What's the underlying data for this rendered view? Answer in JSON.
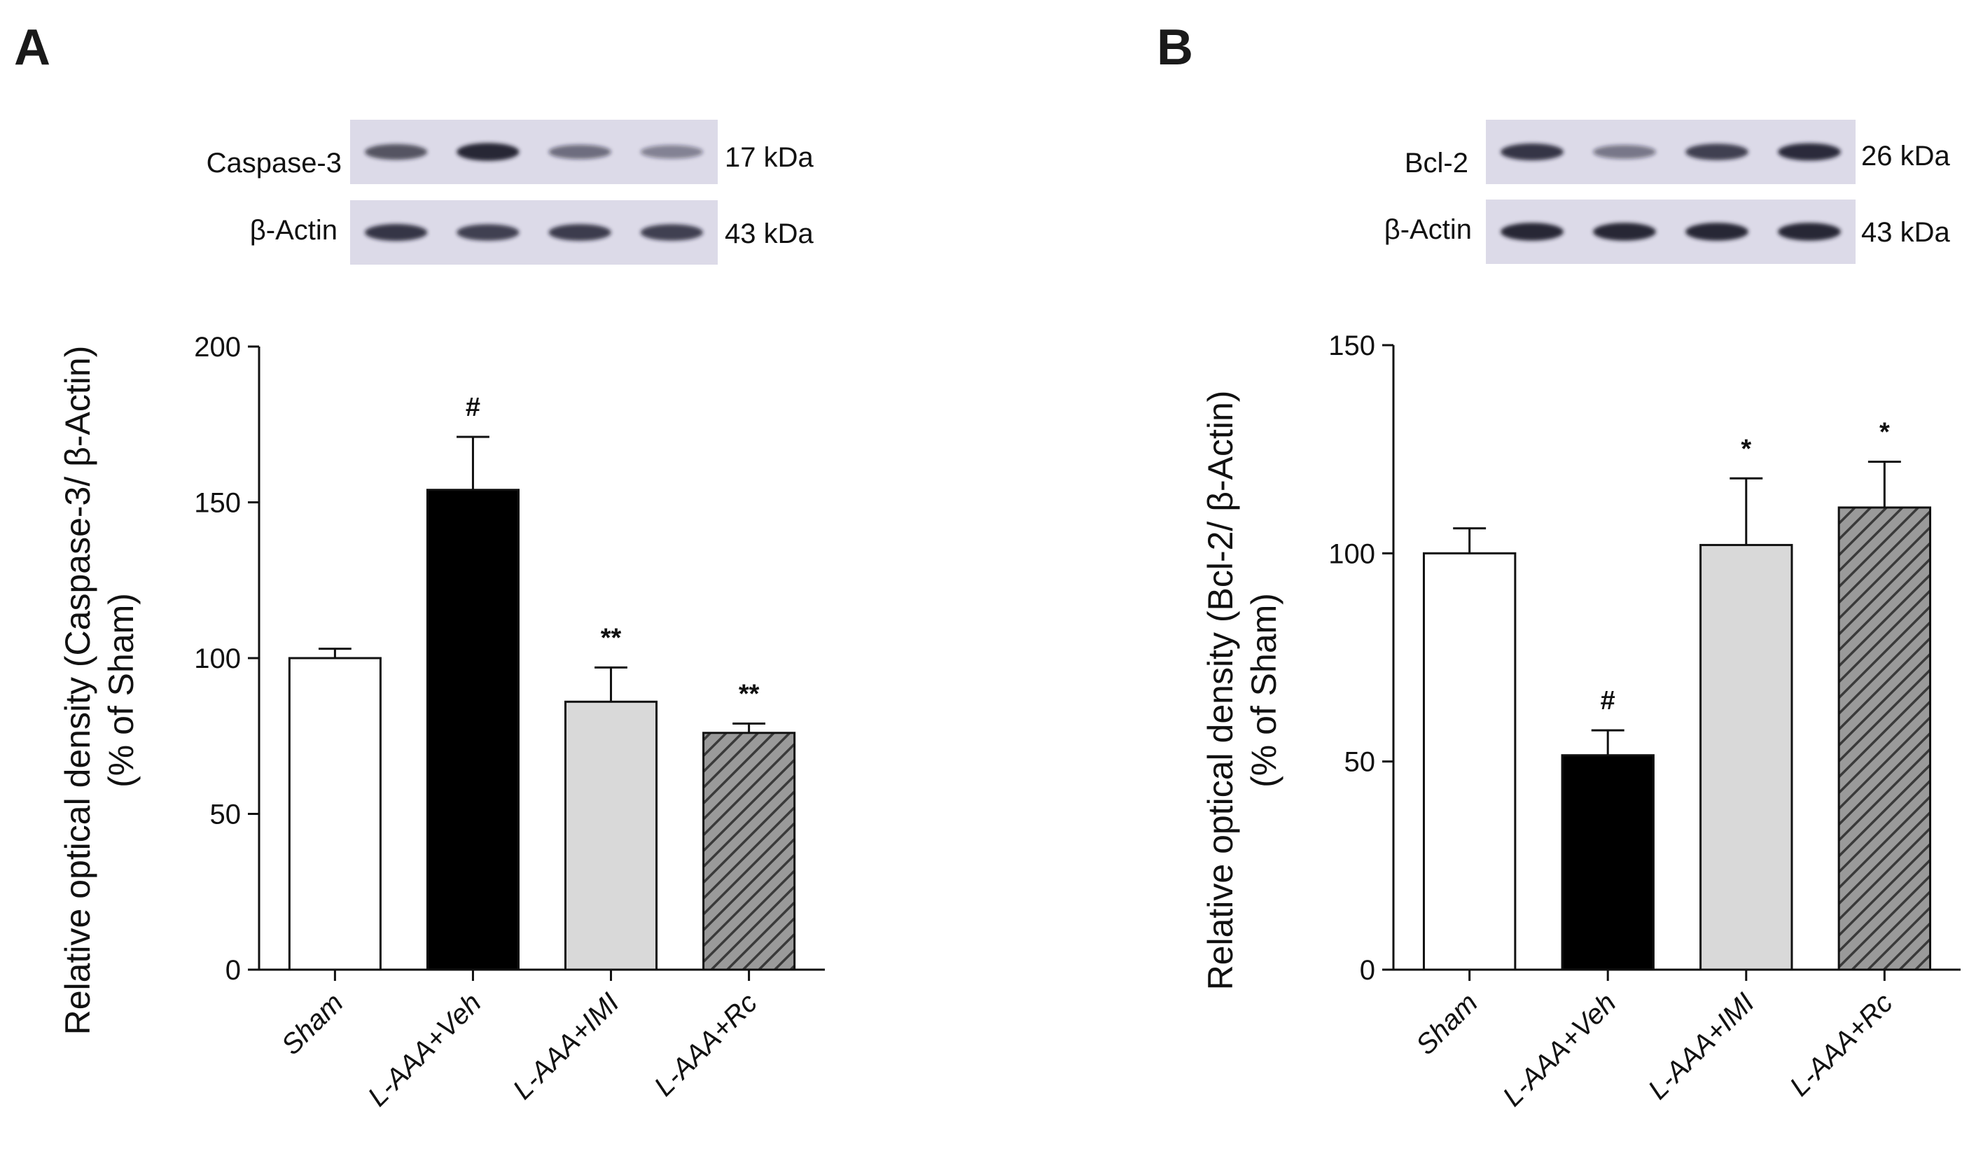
{
  "panels": [
    {
      "letter": "A",
      "blots": [
        {
          "label": "Caspase-3",
          "size": "17 kDa",
          "intensities": [
            0.7,
            0.95,
            0.55,
            0.45
          ]
        },
        {
          "label": "β-Actin",
          "size": "43 kDa",
          "intensities": [
            0.85,
            0.8,
            0.82,
            0.8
          ]
        }
      ]
    },
    {
      "letter": "B",
      "blots": [
        {
          "label": "Bcl-2",
          "size": "26 kDa",
          "intensities": [
            0.85,
            0.5,
            0.8,
            0.9
          ]
        },
        {
          "label": "β-Actin",
          "size": "43 kDa",
          "intensities": [
            0.95,
            0.95,
            0.95,
            0.95
          ]
        }
      ]
    }
  ],
  "colors": {
    "sham": "#ffffff",
    "veh": "#000000",
    "imi": "#d9d9d9",
    "rc_hatch_bg": "#9a9a9a",
    "rc_hatch_line": "#3a3a3a",
    "blot_bg": "#dcdae8",
    "band": "#1a1a2a"
  },
  "chart_data": [
    {
      "type": "bar",
      "ylabel_line1": "Relative optical density (Caspase-3/ β-Actin)",
      "ylabel_line2": "(% of Sham)",
      "xlabel": "",
      "categories": [
        "Sham",
        "L-AAA+Veh",
        "L-AAA+IMI",
        "L-AAA+Rc"
      ],
      "values": [
        100,
        154,
        86,
        76
      ],
      "errors": [
        3,
        17,
        11,
        3
      ],
      "annotations": [
        "",
        "#",
        "**",
        "**"
      ],
      "ylim": [
        0,
        200
      ],
      "yticks": [
        0,
        50,
        100,
        150,
        200
      ],
      "grid": false
    },
    {
      "type": "bar",
      "ylabel_line1": "Relative optical density (Bcl-2/ β-Actin)",
      "ylabel_line2": "(% of Sham)",
      "xlabel": "",
      "categories": [
        "Sham",
        "L-AAA+Veh",
        "L-AAA+IMI",
        "L-AAA+Rc"
      ],
      "values": [
        100,
        51.5,
        102,
        111
      ],
      "errors": [
        6,
        6,
        16,
        11
      ],
      "annotations": [
        "",
        "#",
        "*",
        "*"
      ],
      "ylim": [
        0,
        150
      ],
      "yticks": [
        0,
        50,
        100,
        150
      ],
      "grid": false
    }
  ]
}
